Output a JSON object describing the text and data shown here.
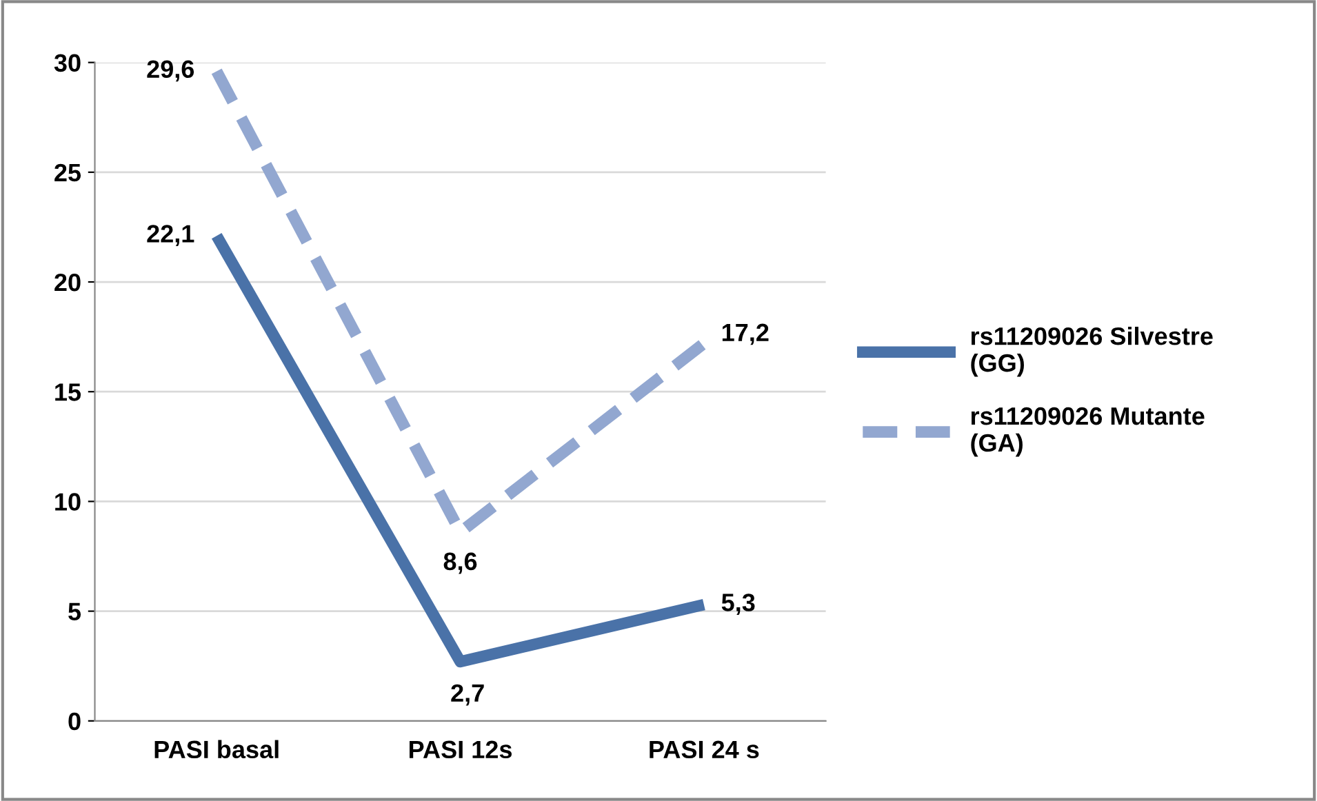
{
  "chart_data": {
    "type": "line",
    "categories": [
      "PASI basal",
      "PASI 12s",
      "PASI 24 s"
    ],
    "series": [
      {
        "name": "rs11209026 Silvestre (GG)",
        "color": "#4a72a8",
        "line_style": "solid",
        "values": [
          22.1,
          2.7,
          5.3
        ],
        "value_labels": [
          "22,1",
          "2,7",
          "5,3"
        ]
      },
      {
        "name": "rs11209026 Mutante (GA)",
        "color": "#92a7d0",
        "line_style": "dashed",
        "values": [
          29.6,
          8.6,
          17.2
        ],
        "value_labels": [
          "29,6",
          "8,6",
          "17,2"
        ]
      }
    ],
    "ylim": [
      0,
      30
    ],
    "yticks": [
      0,
      5,
      10,
      15,
      20,
      25,
      30
    ],
    "grid": "y",
    "legend": "right",
    "marker": "none"
  }
}
